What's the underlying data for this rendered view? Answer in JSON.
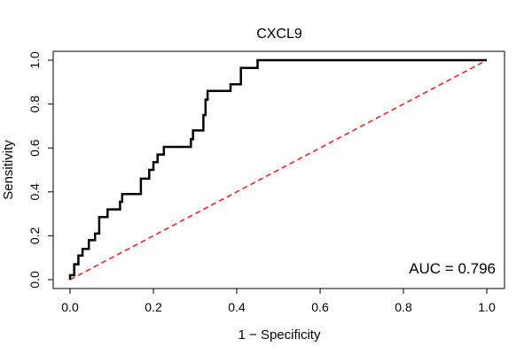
{
  "chart_data": {
    "type": "line",
    "title": "CXCL9",
    "xlabel": "1 − Specificity",
    "ylabel": "Sensitivity",
    "xlim": [
      0,
      1
    ],
    "ylim": [
      0,
      1
    ],
    "xticks": [
      "0.0",
      "0.2",
      "0.4",
      "0.6",
      "0.8",
      "1.0"
    ],
    "yticks": [
      "0.0",
      "0.2",
      "0.4",
      "0.6",
      "0.8",
      "1.0"
    ],
    "grid": false,
    "annotation": "AUC = 0.796",
    "diagonal_color": "#e8232a",
    "curve_color": "#000000",
    "series": [
      {
        "x": [
          0.0,
          0.0,
          0.01,
          0.01,
          0.02,
          0.02,
          0.03,
          0.03,
          0.045,
          0.045,
          0.06,
          0.06,
          0.07,
          0.07,
          0.09,
          0.09,
          0.12,
          0.12,
          0.125,
          0.125,
          0.17,
          0.17,
          0.19,
          0.19,
          0.2,
          0.2,
          0.21,
          0.21,
          0.225,
          0.225,
          0.29,
          0.29,
          0.295,
          0.295,
          0.32,
          0.32,
          0.325,
          0.325,
          0.33,
          0.33,
          0.385,
          0.385,
          0.41,
          0.41,
          0.45,
          0.45,
          1.0
        ],
        "y": [
          0.0,
          0.02,
          0.02,
          0.07,
          0.07,
          0.11,
          0.11,
          0.14,
          0.14,
          0.18,
          0.18,
          0.21,
          0.21,
          0.285,
          0.285,
          0.32,
          0.32,
          0.355,
          0.355,
          0.39,
          0.39,
          0.46,
          0.46,
          0.5,
          0.5,
          0.535,
          0.535,
          0.57,
          0.57,
          0.605,
          0.605,
          0.64,
          0.64,
          0.68,
          0.68,
          0.75,
          0.75,
          0.82,
          0.82,
          0.86,
          0.86,
          0.89,
          0.89,
          0.965,
          0.965,
          1.0,
          1.0
        ]
      }
    ]
  }
}
